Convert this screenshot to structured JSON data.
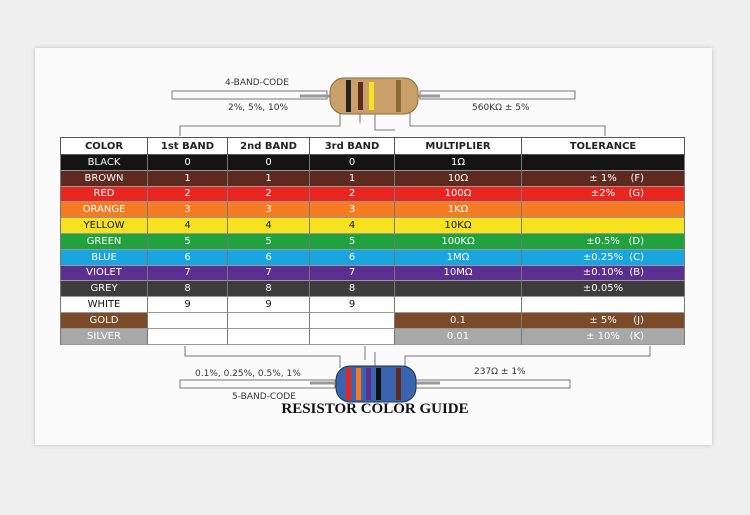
{
  "card": {
    "top": {
      "code_label": "4-BAND-CODE",
      "tolerances": "2%, 5%, 10%",
      "example": "560KΩ ± 5%"
    },
    "bottom": {
      "tolerances": "0.1%, 0.25%, 0.5%, 1%",
      "code_label": "5-BAND-CODE",
      "example": "237Ω ± 1%"
    },
    "title": "RESISTOR COLOR GUIDE",
    "table": {
      "headers": [
        "COLOR",
        "1st BAND",
        "2nd BAND",
        "3rd BAND",
        "MULTIPLIER",
        "TOLERANCE"
      ],
      "rows": [
        {
          "color": "#141414",
          "name": "BLACK",
          "band1": "0",
          "band2": "0",
          "band3": "0",
          "multiplier": "1Ω"
        },
        {
          "color": "#5c2a1f",
          "name": "BROWN",
          "band1": "1",
          "band2": "1",
          "band3": "1",
          "multiplier": "10Ω",
          "tolerance": "± 1%",
          "code": "(F)"
        },
        {
          "color": "#e8251f",
          "name": "RED",
          "band1": "2",
          "band2": "2",
          "band3": "2",
          "multiplier": "100Ω",
          "tolerance": "±2%",
          "code": "(G)"
        },
        {
          "color": "#f47b21",
          "name": "ORANGE",
          "band1": "3",
          "band2": "3",
          "band3": "3",
          "multiplier": "1KΩ"
        },
        {
          "color": "#f6e31d",
          "name": "YELLOW",
          "band1": "4",
          "band2": "4",
          "band3": "4",
          "multiplier": "10KΩ"
        },
        {
          "color": "#20a23f",
          "name": "GREEN",
          "band1": "5",
          "band2": "5",
          "band3": "5",
          "multiplier": "100KΩ",
          "tolerance": "±0.5%",
          "code": "(D)"
        },
        {
          "color": "#19a5df",
          "name": "BLUE",
          "band1": "6",
          "band2": "6",
          "band3": "6",
          "multiplier": "1MΩ",
          "tolerance": "±0.25%",
          "code": "(C)"
        },
        {
          "color": "#5b2f90",
          "name": "VIOLET",
          "band1": "7",
          "band2": "7",
          "band3": "7",
          "multiplier": "10MΩ",
          "tolerance": "±0.10%",
          "code": "(B)"
        },
        {
          "color": "#3d3d3d",
          "name": "GREY",
          "band1": "8",
          "band2": "8",
          "band3": "8",
          "tolerance": "±0.05%"
        },
        {
          "color": "#ffffff",
          "name": "WHITE",
          "band1": "9",
          "band2": "9",
          "band3": "9"
        },
        {
          "color": "#7b4a29",
          "name": "GOLD",
          "multiplier": "0.1",
          "tolerance": "± 5%",
          "code": "(J)"
        },
        {
          "color": "#a8a8a8",
          "name": "SILVER",
          "multiplier": "0.01",
          "tolerance": "± 10%",
          "code": "(K)"
        }
      ]
    }
  }
}
